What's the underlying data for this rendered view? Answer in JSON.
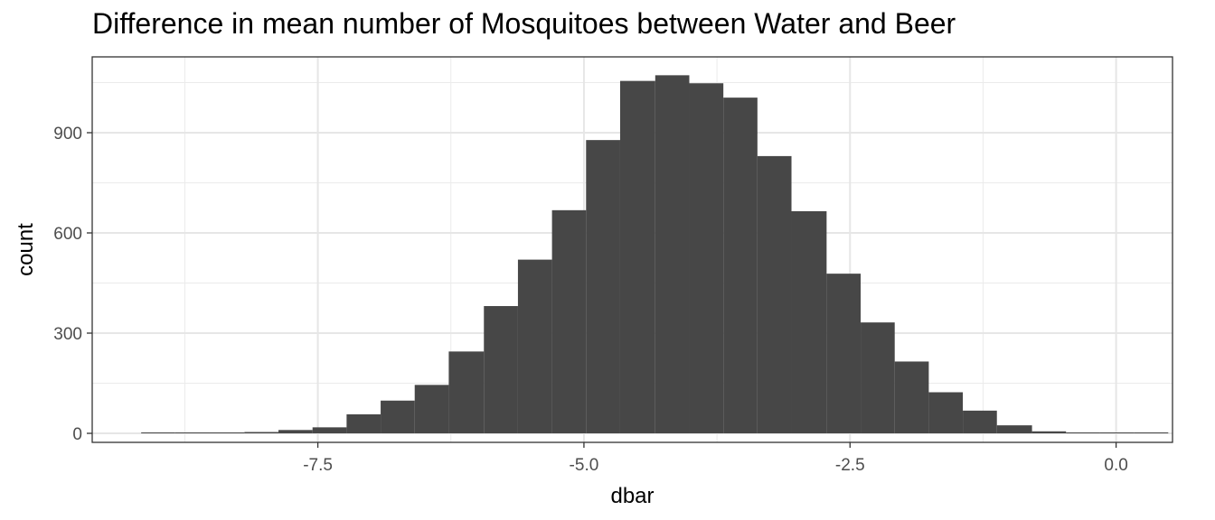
{
  "chart_data": {
    "type": "bar",
    "subtype": "histogram",
    "title": "Difference in mean number of Mosquitoes between Water and Beer",
    "xlabel": "dbar",
    "ylabel": "count",
    "xlim": [
      -9.62,
      0.53
    ],
    "ylim": [
      -27,
      1127
    ],
    "x_ticks": [
      -7.5,
      -5.0,
      -2.5,
      0.0
    ],
    "x_tick_labels": [
      "-7.5",
      "-5.0",
      "-2.5",
      "0.0"
    ],
    "y_ticks": [
      0,
      300,
      600,
      900
    ],
    "y_tick_labels": [
      "0",
      "300",
      "600",
      "900"
    ],
    "grid": true,
    "legend": "none",
    "bar_color": "#474747",
    "bins": [
      {
        "x0": -9.16,
        "x1": -8.84,
        "count": 1
      },
      {
        "x0": -8.84,
        "x1": -8.52,
        "count": 2
      },
      {
        "x0": -8.52,
        "x1": -8.19,
        "count": 2
      },
      {
        "x0": -8.19,
        "x1": -7.87,
        "count": 4
      },
      {
        "x0": -7.87,
        "x1": -7.55,
        "count": 10
      },
      {
        "x0": -7.55,
        "x1": -7.23,
        "count": 18
      },
      {
        "x0": -7.23,
        "x1": -6.91,
        "count": 57
      },
      {
        "x0": -6.91,
        "x1": -6.59,
        "count": 98
      },
      {
        "x0": -6.59,
        "x1": -6.27,
        "count": 145
      },
      {
        "x0": -6.27,
        "x1": -5.94,
        "count": 245
      },
      {
        "x0": -5.94,
        "x1": -5.62,
        "count": 381
      },
      {
        "x0": -5.62,
        "x1": -5.3,
        "count": 520
      },
      {
        "x0": -5.3,
        "x1": -4.98,
        "count": 668
      },
      {
        "x0": -4.98,
        "x1": -4.66,
        "count": 878
      },
      {
        "x0": -4.66,
        "x1": -4.33,
        "count": 1055
      },
      {
        "x0": -4.33,
        "x1": -4.01,
        "count": 1072
      },
      {
        "x0": -4.01,
        "x1": -3.69,
        "count": 1048
      },
      {
        "x0": -3.69,
        "x1": -3.37,
        "count": 1005
      },
      {
        "x0": -3.37,
        "x1": -3.05,
        "count": 830
      },
      {
        "x0": -3.05,
        "x1": -2.72,
        "count": 665
      },
      {
        "x0": -2.72,
        "x1": -2.4,
        "count": 478
      },
      {
        "x0": -2.4,
        "x1": -2.08,
        "count": 332
      },
      {
        "x0": -2.08,
        "x1": -1.76,
        "count": 215
      },
      {
        "x0": -1.76,
        "x1": -1.44,
        "count": 123
      },
      {
        "x0": -1.44,
        "x1": -1.12,
        "count": 68
      },
      {
        "x0": -1.12,
        "x1": -0.79,
        "count": 24
      },
      {
        "x0": -0.79,
        "x1": -0.47,
        "count": 6
      },
      {
        "x0": -0.47,
        "x1": -0.15,
        "count": 2
      },
      {
        "x0": -0.15,
        "x1": 0.17,
        "count": 1
      },
      {
        "x0": 0.17,
        "x1": 0.49,
        "count": 1
      }
    ]
  }
}
